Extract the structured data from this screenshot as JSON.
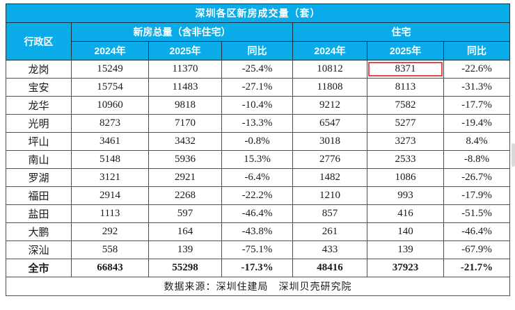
{
  "colors": {
    "header_bg": "#09ace8",
    "header_text": "#ffffff",
    "body_text": "#1a1a1a",
    "grid_line": "#4f4f4f",
    "header_grid_line": "#16323f",
    "highlight_box": "#e24a4a",
    "scrollbar": "#d9d9d9"
  },
  "table": {
    "title": "深圳各区新房成交量（套）",
    "header": {
      "district_label": "行政区",
      "group1_label": "新房总量（含非住宅）",
      "group2_label": "住宅",
      "sub_labels": [
        "2024年",
        "2025年",
        "同比",
        "2024年",
        "2025年",
        "同比"
      ]
    },
    "rows": [
      {
        "district": "龙岗",
        "total_2024": "15249",
        "total_2025": "11370",
        "total_yoy": "-25.4%",
        "res_2024": "10812",
        "res_2025": "8371",
        "res_yoy": "-22.6%",
        "highlight": "res_2025"
      },
      {
        "district": "宝安",
        "total_2024": "15754",
        "total_2025": "11483",
        "total_yoy": "-27.1%",
        "res_2024": "11808",
        "res_2025": "8113",
        "res_yoy": "-31.3%"
      },
      {
        "district": "龙华",
        "total_2024": "10960",
        "total_2025": "9818",
        "total_yoy": "-10.4%",
        "res_2024": "9212",
        "res_2025": "7582",
        "res_yoy": "-17.7%"
      },
      {
        "district": "光明",
        "total_2024": "8273",
        "total_2025": "7170",
        "total_yoy": "-13.3%",
        "res_2024": "6547",
        "res_2025": "5277",
        "res_yoy": "-19.4%"
      },
      {
        "district": "坪山",
        "total_2024": "3461",
        "total_2025": "3432",
        "total_yoy": "-0.8%",
        "res_2024": "3018",
        "res_2025": "3273",
        "res_yoy": "8.4%"
      },
      {
        "district": "南山",
        "total_2024": "5148",
        "total_2025": "5936",
        "total_yoy": "15.3%",
        "res_2024": "2776",
        "res_2025": "2533",
        "res_yoy": "-8.8%"
      },
      {
        "district": "罗湖",
        "total_2024": "3121",
        "total_2025": "2921",
        "total_yoy": "-6.4%",
        "res_2024": "1482",
        "res_2025": "1086",
        "res_yoy": "-26.7%"
      },
      {
        "district": "福田",
        "total_2024": "2914",
        "total_2025": "2268",
        "total_yoy": "-22.2%",
        "res_2024": "1210",
        "res_2025": "993",
        "res_yoy": "-17.9%"
      },
      {
        "district": "盐田",
        "total_2024": "1113",
        "total_2025": "597",
        "total_yoy": "-46.4%",
        "res_2024": "857",
        "res_2025": "416",
        "res_yoy": "-51.5%"
      },
      {
        "district": "大鹏",
        "total_2024": "292",
        "total_2025": "164",
        "total_yoy": "-43.8%",
        "res_2024": "261",
        "res_2025": "140",
        "res_yoy": "-46.4%"
      },
      {
        "district": "深汕",
        "total_2024": "558",
        "total_2025": "139",
        "total_yoy": "-75.1%",
        "res_2024": "433",
        "res_2025": "139",
        "res_yoy": "-67.9%"
      },
      {
        "district": "全市",
        "total_2024": "66843",
        "total_2025": "55298",
        "total_yoy": "-17.3%",
        "res_2024": "48416",
        "res_2025": "37923",
        "res_yoy": "-21.7%",
        "emphasis": true
      }
    ],
    "footer": "数据来源：深圳住建局　深圳贝壳研究院"
  },
  "chart_data": {
    "type": "table",
    "title": "深圳各区新房成交量（套）",
    "column_groups": [
      "新房总量（含非住宅）",
      "住宅"
    ],
    "columns": [
      "行政区",
      "新房总量2024年",
      "新房总量2025年",
      "新房总量同比",
      "住宅2024年",
      "住宅2025年",
      "住宅同比"
    ],
    "rows": [
      [
        "龙岗",
        15249,
        11370,
        "-25.4%",
        10812,
        8371,
        "-22.6%"
      ],
      [
        "宝安",
        15754,
        11483,
        "-27.1%",
        11808,
        8113,
        "-31.3%"
      ],
      [
        "龙华",
        10960,
        9818,
        "-10.4%",
        9212,
        7582,
        "-17.7%"
      ],
      [
        "光明",
        8273,
        7170,
        "-13.3%",
        6547,
        5277,
        "-19.4%"
      ],
      [
        "坪山",
        3461,
        3432,
        "-0.8%",
        3018,
        3273,
        "8.4%"
      ],
      [
        "南山",
        5148,
        5936,
        "15.3%",
        2776,
        2533,
        "-8.8%"
      ],
      [
        "罗湖",
        3121,
        2921,
        "-6.4%",
        1482,
        1086,
        "-26.7%"
      ],
      [
        "福田",
        2914,
        2268,
        "-22.2%",
        1210,
        993,
        "-17.9%"
      ],
      [
        "盐田",
        1113,
        597,
        "-46.4%",
        857,
        416,
        "-51.5%"
      ],
      [
        "大鹏",
        292,
        164,
        "-43.8%",
        261,
        140,
        "-46.4%"
      ],
      [
        "深汕",
        558,
        139,
        "-75.1%",
        433,
        139,
        "-67.9%"
      ],
      [
        "全市",
        66843,
        55298,
        "-17.3%",
        48416,
        37923,
        "-21.7%"
      ]
    ],
    "annotations": [
      "龙岗行 住宅2025年 数值 8371 以红色方框标注"
    ],
    "source": "数据来源：深圳住建局　深圳贝壳研究院"
  }
}
